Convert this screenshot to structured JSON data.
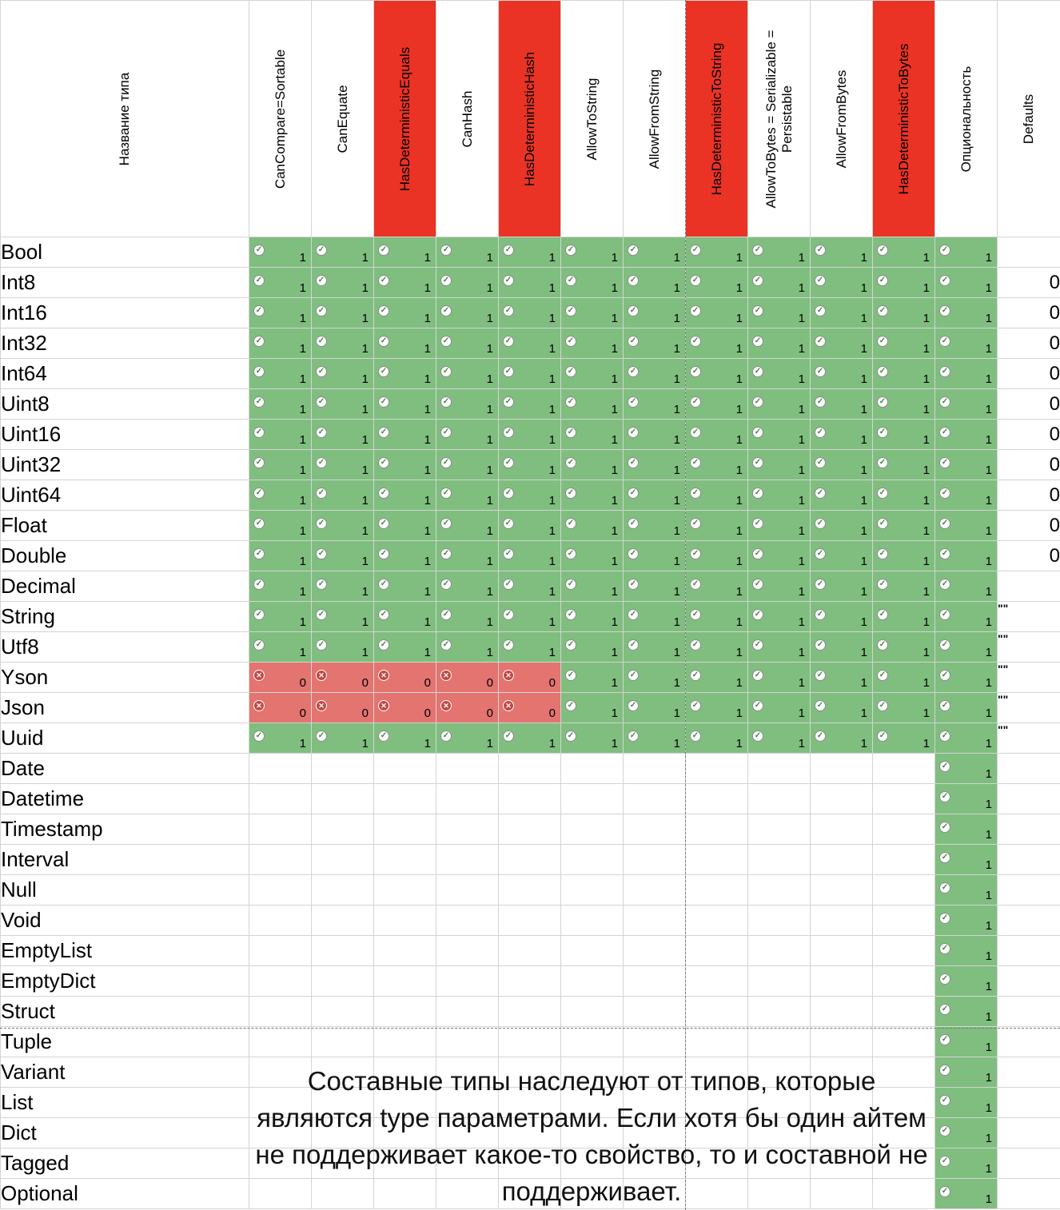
{
  "columns": [
    {
      "label": "Название типа",
      "red": false
    },
    {
      "label": "CanCompare=Sortable",
      "red": false
    },
    {
      "label": "CanEquate",
      "red": false
    },
    {
      "label": "HasDeterministicEquals",
      "red": true
    },
    {
      "label": "CanHash",
      "red": false
    },
    {
      "label": "HasDeterministicHash",
      "red": true
    },
    {
      "label": "AllowToString",
      "red": false
    },
    {
      "label": "AllowFromString",
      "red": false
    },
    {
      "label": "HasDeterministicToString",
      "red": true
    },
    {
      "label": "AllowToBytes = Serializable = Persistable",
      "red": false
    },
    {
      "label": "AllowFromBytes",
      "red": false
    },
    {
      "label": "HasDeterministicToBytes",
      "red": true
    },
    {
      "label": "Опциональность",
      "red": false
    },
    {
      "label": "Defaults",
      "red": false
    }
  ],
  "colors": {
    "green": "#7fbe7f",
    "red_cell": "#e37470",
    "red_header": "#ea3324"
  },
  "rows": [
    {
      "name": "Bool",
      "cells": "111111111111",
      "default": ""
    },
    {
      "name": "Int8",
      "cells": "111111111111",
      "default": "0"
    },
    {
      "name": "Int16",
      "cells": "111111111111",
      "default": "0"
    },
    {
      "name": "Int32",
      "cells": "111111111111",
      "default": "0"
    },
    {
      "name": "Int64",
      "cells": "111111111111",
      "default": "0"
    },
    {
      "name": "Uint8",
      "cells": "111111111111",
      "default": "0"
    },
    {
      "name": "Uint16",
      "cells": "111111111111",
      "default": "0"
    },
    {
      "name": "Uint32",
      "cells": "111111111111",
      "default": "0"
    },
    {
      "name": "Uint64",
      "cells": "111111111111",
      "default": "0"
    },
    {
      "name": "Float",
      "cells": "111111111111",
      "default": "0"
    },
    {
      "name": "Double",
      "cells": "111111111111",
      "default": "0"
    },
    {
      "name": "Decimal",
      "cells": "111111111111",
      "default": ""
    },
    {
      "name": "String",
      "cells": "111111111111",
      "default": "\"\""
    },
    {
      "name": "Utf8",
      "cells": "111111111111",
      "default": "\"\""
    },
    {
      "name": "Yson",
      "cells": "000001111111",
      "default": "\"\""
    },
    {
      "name": "Json",
      "cells": "000001111111",
      "default": "\"\""
    },
    {
      "name": "Uuid",
      "cells": "111111111111",
      "default": "\"\""
    },
    {
      "name": "Date",
      "cells": "-----------1",
      "default": ""
    },
    {
      "name": "Datetime",
      "cells": "-----------1",
      "default": ""
    },
    {
      "name": "Timestamp",
      "cells": "-----------1",
      "default": ""
    },
    {
      "name": "Interval",
      "cells": "-----------1",
      "default": ""
    },
    {
      "name": "Null",
      "cells": "-----------1",
      "default": ""
    },
    {
      "name": "Void",
      "cells": "-----------1",
      "default": ""
    },
    {
      "name": "EmptyList",
      "cells": "-----------1",
      "default": ""
    },
    {
      "name": "EmptyDict",
      "cells": "-----------1",
      "default": ""
    },
    {
      "name": "Struct",
      "cells": "-----------1",
      "default": ""
    },
    {
      "name": "Tuple",
      "cells": "-----------1",
      "default": ""
    },
    {
      "name": "Variant",
      "cells": "-----------1",
      "default": ""
    },
    {
      "name": "List",
      "cells": "-----------1",
      "default": ""
    },
    {
      "name": "Dict",
      "cells": "-----------1",
      "default": ""
    },
    {
      "name": "Tagged",
      "cells": "-----------1",
      "default": ""
    },
    {
      "name": "Optional",
      "cells": "-----------1",
      "default": ""
    }
  ],
  "note": "Составные типы наследуют от типов, которые являются type параметрами. Если хотя бы один айтем не поддерживает какое-то свойство, то и составной не поддерживает."
}
